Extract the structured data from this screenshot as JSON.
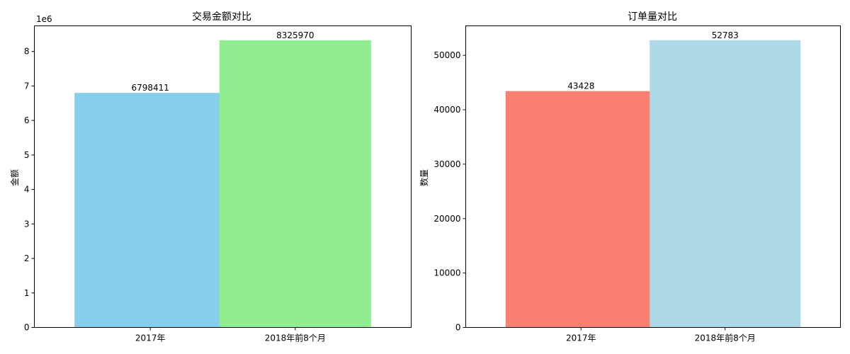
{
  "chart_data": [
    {
      "type": "bar",
      "title": "交易金额对比",
      "xlabel": "",
      "ylabel": "金额",
      "categories": [
        "2017年",
        "2018年前8个月"
      ],
      "values": [
        6798411,
        8325970
      ],
      "value_labels": [
        "6798411",
        "8325970"
      ],
      "colors": [
        "#87ceeb",
        "#90ee90"
      ],
      "ylim": [
        0,
        8742268.5
      ],
      "yticks": [
        0,
        1000000,
        2000000,
        3000000,
        4000000,
        5000000,
        6000000,
        7000000,
        8000000
      ],
      "ytick_labels": [
        "0",
        "1",
        "2",
        "3",
        "4",
        "5",
        "6",
        "7",
        "8"
      ],
      "offset_text": "1e6",
      "grid": false,
      "legend": "none"
    },
    {
      "type": "bar",
      "title": "订单量对比",
      "xlabel": "",
      "ylabel": "数量",
      "categories": [
        "2017年",
        "2018年前8个月"
      ],
      "values": [
        43428,
        52783
      ],
      "value_labels": [
        "43428",
        "52783"
      ],
      "colors": [
        "#fa8072",
        "#add8e6"
      ],
      "ylim": [
        0,
        55422
      ],
      "yticks": [
        0,
        10000,
        20000,
        30000,
        40000,
        50000
      ],
      "ytick_labels": [
        "0",
        "10000",
        "20000",
        "30000",
        "40000",
        "50000"
      ],
      "offset_text": "",
      "grid": false,
      "legend": "none"
    }
  ]
}
